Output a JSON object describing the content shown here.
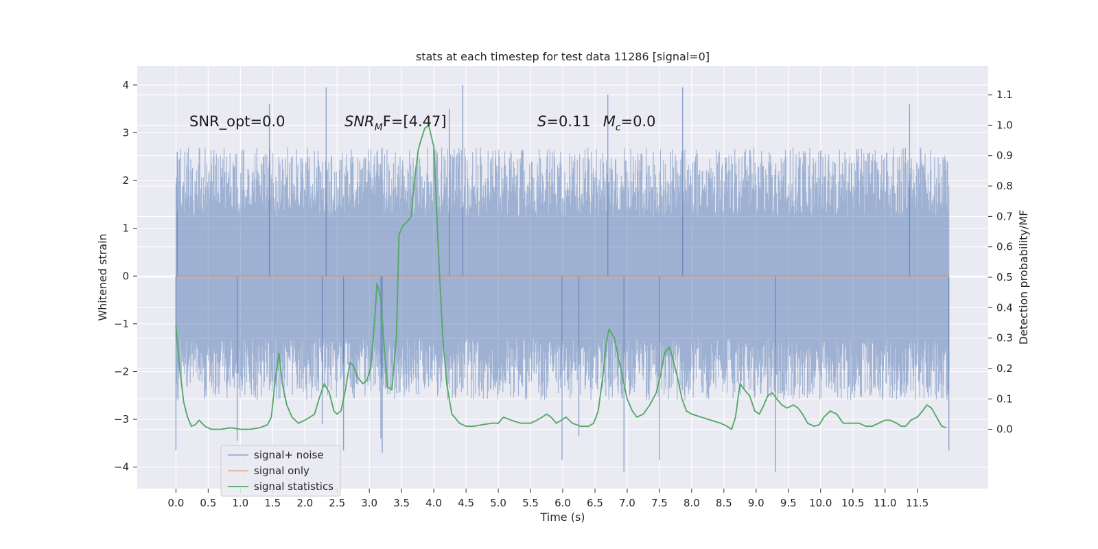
{
  "chart_data": {
    "type": "line",
    "title": "stats at each timestep for test data 11286 [signal=0]",
    "xlabel": "Time (s)",
    "ylabel": "Whitened strain",
    "y2label": "Detection probability/MF",
    "xlim": [
      -0.6,
      12.6
    ],
    "ylim": [
      -4.45,
      4.4
    ],
    "y2lim": [
      -0.195,
      1.195
    ],
    "x_ticks": [
      0.0,
      0.5,
      1.0,
      1.5,
      2.0,
      2.5,
      3.0,
      3.5,
      4.0,
      4.5,
      5.0,
      5.5,
      6.0,
      6.5,
      7.0,
      7.5,
      8.0,
      8.5,
      9.0,
      9.5,
      10.0,
      10.5,
      11.0,
      11.5
    ],
    "x_tick_labels": [
      "0.0",
      "0.5",
      "1.0",
      "1.5",
      "2.0",
      "2.5",
      "3.0",
      "3.5",
      "4.0",
      "4.5",
      "5.0",
      "5.5",
      "6.0",
      "6.5",
      "7.0",
      "7.5",
      "8.0",
      "8.5",
      "9.0",
      "9.5",
      "10.0",
      "10.5",
      "11.0",
      "11.5"
    ],
    "y_ticks": [
      -4,
      -3,
      -2,
      -1,
      0,
      1,
      2,
      3,
      4
    ],
    "y_tick_labels": [
      "−4",
      "−3",
      "−2",
      "−1",
      "0",
      "1",
      "2",
      "3",
      "4"
    ],
    "y2_ticks": [
      0.0,
      0.1,
      0.2,
      0.3,
      0.4,
      0.5,
      0.6,
      0.7,
      0.8,
      0.9,
      1.0,
      1.1
    ],
    "y2_tick_labels": [
      "0.0",
      "0.1",
      "0.2",
      "0.3",
      "0.4",
      "0.5",
      "0.6",
      "0.7",
      "0.8",
      "0.9",
      "1.0",
      "1.1"
    ],
    "grid": true,
    "legend_position": "lower-left",
    "annotations": {
      "snr_opt": "SNR_opt=0.0",
      "snr_mf_base": "SNR",
      "snr_mf_sub": "M",
      "snr_mf_rest": "F=[4.47]",
      "s_var": "S",
      "s_val": "=0.11",
      "mc_var": "M",
      "mc_sub": "c",
      "mc_val": "=0.0"
    },
    "noise": {
      "t_start": 0.0,
      "t_end": 11.99,
      "typical_range": [
        -1.3,
        1.25
      ],
      "envelope_range": [
        -2.6,
        2.7
      ],
      "spikes": [
        {
          "t": 0.0,
          "y": -3.65
        },
        {
          "t": 0.02,
          "y": 2.6
        },
        {
          "t": 0.95,
          "y": -3.45
        },
        {
          "t": 1.45,
          "y": 3.6
        },
        {
          "t": 2.27,
          "y": -3.1
        },
        {
          "t": 2.33,
          "y": 3.95
        },
        {
          "t": 2.6,
          "y": -3.65
        },
        {
          "t": 3.18,
          "y": -3.4
        },
        {
          "t": 3.2,
          "y": -3.7
        },
        {
          "t": 4.24,
          "y": 3.5
        },
        {
          "t": 4.45,
          "y": 4.0
        },
        {
          "t": 5.99,
          "y": -3.85
        },
        {
          "t": 6.25,
          "y": -3.35
        },
        {
          "t": 6.7,
          "y": 3.8
        },
        {
          "t": 6.95,
          "y": -4.1
        },
        {
          "t": 7.5,
          "y": -3.85
        },
        {
          "t": 7.86,
          "y": 3.95
        },
        {
          "t": 9.3,
          "y": -4.1
        },
        {
          "t": 11.38,
          "y": 3.6
        },
        {
          "t": 11.99,
          "y": -3.65
        }
      ]
    },
    "series": [
      {
        "name": "signal+ noise",
        "color": "#4c72b0"
      },
      {
        "name": "signal only",
        "color": "#dd8452",
        "x": [
          0.0,
          11.99
        ],
        "y": [
          0.0,
          0.0
        ]
      },
      {
        "name": "signal statistics",
        "color": "#55a868",
        "axis": "right",
        "x": [
          0.0,
          0.06,
          0.12,
          0.18,
          0.24,
          0.3,
          0.36,
          0.45,
          0.55,
          0.7,
          0.85,
          1.0,
          1.15,
          1.3,
          1.42,
          1.48,
          1.55,
          1.6,
          1.65,
          1.72,
          1.8,
          1.9,
          2.0,
          2.08,
          2.15,
          2.22,
          2.3,
          2.38,
          2.45,
          2.5,
          2.56,
          2.62,
          2.7,
          2.75,
          2.82,
          2.9,
          2.96,
          3.02,
          3.08,
          3.12,
          3.18,
          3.22,
          3.28,
          3.35,
          3.42,
          3.46,
          3.52,
          3.58,
          3.65,
          3.7,
          3.76,
          3.8,
          3.86,
          3.92,
          4.0,
          4.08,
          4.14,
          4.2,
          4.28,
          4.4,
          4.5,
          4.62,
          4.75,
          4.9,
          5.0,
          5.08,
          5.2,
          5.35,
          5.5,
          5.6,
          5.68,
          5.75,
          5.82,
          5.9,
          5.98,
          6.05,
          6.15,
          6.28,
          6.4,
          6.48,
          6.55,
          6.62,
          6.68,
          6.72,
          6.8,
          6.9,
          7.0,
          7.08,
          7.15,
          7.25,
          7.35,
          7.45,
          7.52,
          7.58,
          7.65,
          7.7,
          7.78,
          7.85,
          7.92,
          8.0,
          8.15,
          8.3,
          8.45,
          8.55,
          8.62,
          8.68,
          8.75,
          8.82,
          8.9,
          8.98,
          9.05,
          9.12,
          9.18,
          9.25,
          9.32,
          9.4,
          9.48,
          9.58,
          9.65,
          9.72,
          9.8,
          9.9,
          9.98,
          10.05,
          10.15,
          10.25,
          10.35,
          10.5,
          10.6,
          10.7,
          10.8,
          10.9,
          11.0,
          11.08,
          11.18,
          11.25,
          11.32,
          11.4,
          11.5,
          11.58,
          11.65,
          11.72,
          11.8,
          11.88,
          11.95
        ],
        "y": [
          0.34,
          0.2,
          0.09,
          0.04,
          0.01,
          0.015,
          0.03,
          0.01,
          0.0,
          0.0,
          0.005,
          0.0,
          0.0,
          0.005,
          0.015,
          0.04,
          0.18,
          0.25,
          0.15,
          0.08,
          0.04,
          0.02,
          0.03,
          0.04,
          0.05,
          0.1,
          0.15,
          0.12,
          0.06,
          0.05,
          0.06,
          0.12,
          0.22,
          0.21,
          0.17,
          0.15,
          0.16,
          0.2,
          0.35,
          0.48,
          0.43,
          0.3,
          0.14,
          0.13,
          0.3,
          0.64,
          0.67,
          0.68,
          0.7,
          0.82,
          0.92,
          0.95,
          0.99,
          1.0,
          0.93,
          0.55,
          0.3,
          0.15,
          0.05,
          0.02,
          0.01,
          0.01,
          0.015,
          0.02,
          0.02,
          0.04,
          0.03,
          0.02,
          0.02,
          0.03,
          0.04,
          0.05,
          0.04,
          0.02,
          0.03,
          0.04,
          0.02,
          0.01,
          0.01,
          0.02,
          0.06,
          0.17,
          0.29,
          0.33,
          0.3,
          0.2,
          0.1,
          0.06,
          0.04,
          0.05,
          0.08,
          0.12,
          0.18,
          0.25,
          0.27,
          0.24,
          0.17,
          0.1,
          0.06,
          0.05,
          0.04,
          0.03,
          0.02,
          0.01,
          0.0,
          0.04,
          0.15,
          0.13,
          0.11,
          0.06,
          0.05,
          0.08,
          0.11,
          0.12,
          0.1,
          0.08,
          0.07,
          0.08,
          0.07,
          0.05,
          0.02,
          0.01,
          0.015,
          0.04,
          0.06,
          0.05,
          0.02,
          0.02,
          0.02,
          0.01,
          0.01,
          0.02,
          0.03,
          0.03,
          0.02,
          0.01,
          0.01,
          0.03,
          0.04,
          0.06,
          0.08,
          0.07,
          0.04,
          0.01,
          0.005
        ]
      }
    ]
  }
}
